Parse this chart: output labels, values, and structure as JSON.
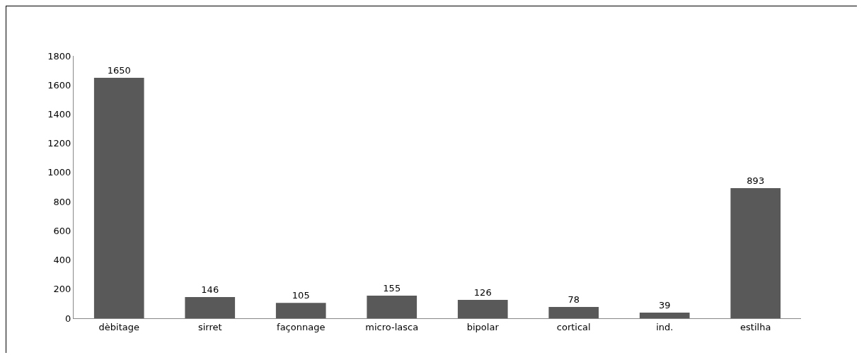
{
  "chart_data": {
    "type": "bar",
    "categories": [
      "dèbitage",
      "sirret",
      "façonnage",
      "micro-lasca",
      "bipolar",
      "cortical",
      "ind.",
      "estilha"
    ],
    "values": [
      1650,
      146,
      105,
      155,
      126,
      78,
      39,
      893
    ],
    "color": "#595959",
    "ylim": [
      0,
      1800
    ],
    "yticks": [
      0,
      200,
      400,
      600,
      800,
      1000,
      1200,
      1400,
      1600,
      1800
    ],
    "grid": false,
    "legend": false,
    "data_labels": true
  }
}
